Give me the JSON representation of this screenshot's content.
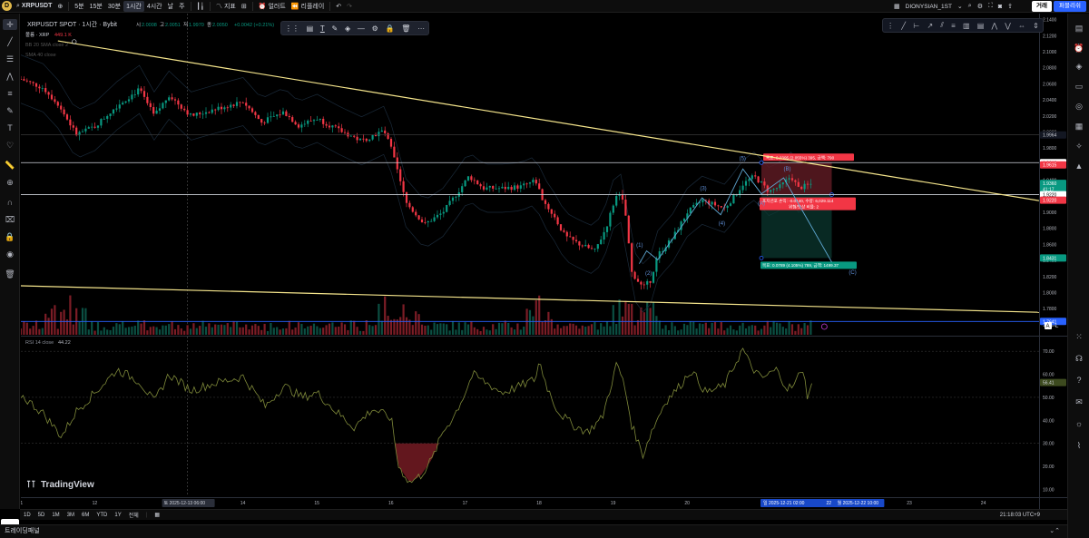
{
  "topbar": {
    "logo": "D",
    "symbol": "XRPUSDT",
    "intervals": [
      "5분",
      "15분",
      "30분",
      "1시간",
      "4시간",
      "날",
      "주"
    ],
    "active_interval": "1시간",
    "indicators_label": "지표",
    "alert_label": "얼러트",
    "replay_label": "리플레이",
    "layout_name": "DIONYSIAN_1ST",
    "trade_button": "거래",
    "publish_button": "퍼블리쉬"
  },
  "legend": {
    "title": "XRPUSDT SPOT · 1시간 · Bybit",
    "ohlc": [
      {
        "k": "시",
        "v": "2.0008"
      },
      {
        "k": "고",
        "v": "2.0051"
      },
      {
        "k": "저",
        "v": "1.9970"
      },
      {
        "k": "종",
        "v": "2.0050"
      }
    ],
    "change": "+0.0042 (+0.21%)",
    "volume_label": "볼륨 · XRP",
    "volume_value": "449.1 K",
    "bb_label": "BB 20 SMA close 2",
    "sma_label": "SMA 40 close",
    "rsi_label": "RSI 14 close",
    "rsi_value": "44.22"
  },
  "price_axis": {
    "ticks": [
      "2.1400",
      "2.1200",
      "2.1000",
      "2.0800",
      "2.0600",
      "2.0400",
      "2.0200",
      "2.0000",
      "1.9800",
      "1.9600",
      "1.9400",
      "1.9200",
      "1.9000",
      "1.8800",
      "1.8600",
      "1.8400",
      "1.8200",
      "1.8000",
      "1.7800",
      "1.7600"
    ],
    "labels": [
      {
        "text": "1.9964",
        "price": 1.9964,
        "bg": "#131722",
        "fg": "#d1d4dc"
      },
      {
        "text": "1.9619",
        "price": 1.9619,
        "bg": "#ffffff",
        "fg": "#000000"
      },
      {
        "text": "1.9615",
        "price": 1.9591,
        "bg": "#f23645",
        "fg": "#ffffff"
      },
      {
        "text": "1.9360",
        "price": 1.936,
        "bg": "#089981",
        "fg": "#ffffff"
      },
      {
        "text": "41:17",
        "price": 1.9289,
        "bg": "#089981",
        "fg": "#ffffff"
      },
      {
        "text": "1.9220",
        "price": 1.922,
        "bg": "#ffffff",
        "fg": "#000000"
      },
      {
        "text": "1.9220",
        "price": 1.9151,
        "bg": "#f23645",
        "fg": "#ffffff"
      },
      {
        "text": "1.8431",
        "price": 1.8431,
        "bg": "#089981",
        "fg": "#ffffff"
      },
      {
        "text": "1.7641",
        "price": 1.7641,
        "bg": "#2962ff",
        "fg": "#ffffff"
      }
    ]
  },
  "rsi_axis": {
    "ticks": [
      "70.00",
      "60.00",
      "50.00",
      "40.00",
      "30.00",
      "20.00",
      "10.00"
    ],
    "value_label": "56.41"
  },
  "time_axis": {
    "ticks": [
      {
        "label": "11",
        "day": 11
      },
      {
        "label": "12",
        "day": 12
      },
      {
        "label": "14",
        "day": 14
      },
      {
        "label": "15",
        "day": 15
      },
      {
        "label": "16",
        "day": 16
      },
      {
        "label": "17",
        "day": 17
      },
      {
        "label": "18",
        "day": 18
      },
      {
        "label": "19",
        "day": 19
      },
      {
        "label": "20",
        "day": 20
      },
      {
        "label": "23",
        "day": 23
      },
      {
        "label": "24",
        "day": 24
      }
    ],
    "crosshair_label": "토 2025-12-13   06:00",
    "range_start_label": "일 2025-12-21   02:00",
    "range_end_label": "월 2025-12-22   10:00",
    "range_mid_label": "22"
  },
  "position": {
    "target_text": "목표: 0.0395 (2.055%) 395, 금액: 790",
    "stop_text": "포지션포 손익: -0.0140, 수량: 6,029.114",
    "ratio_text": "위험/보상 비율: 2",
    "target2_text": "목표: 0.0789 (4.105%) 789, 금액: 1499.37"
  },
  "wave_labels": [
    "(1)",
    "(2)",
    "(3)",
    "(4)",
    "(5)",
    "(A)",
    "(B)",
    "(C)"
  ],
  "watermark": "TradingView",
  "bottombar": {
    "ranges": [
      "1D",
      "5D",
      "1M",
      "3M",
      "6M",
      "YTD",
      "1Y",
      "전체"
    ],
    "clock": "21:18:03 UTC+9"
  },
  "panel_label": "트레이딩패널",
  "colors": {
    "up": "#089981",
    "down": "#f23645",
    "trendline": "#f5e58c",
    "rsi": "#7f8a3a",
    "hline": "#d1d4dc",
    "blue_line": "#2962ff"
  },
  "chart_data": {
    "type": "candlestick",
    "symbol": "XRPUSDT",
    "interval": "1h",
    "y_range": [
      1.7475,
      2.1475
    ],
    "rsi_range": [
      7,
      76
    ],
    "x_range_days": [
      11.0,
      24.75
    ],
    "key_points": [
      [
        11.0,
        2.066
      ],
      [
        11.3,
        2.055
      ],
      [
        11.5,
        2.035
      ],
      [
        11.75,
        1.997
      ],
      [
        12.0,
        2.007
      ],
      [
        12.3,
        2.033
      ],
      [
        12.6,
        2.053
      ],
      [
        12.8,
        2.02
      ],
      [
        13.0,
        2.046
      ],
      [
        13.3,
        2.02
      ],
      [
        13.6,
        2.028
      ],
      [
        14.0,
        2.038
      ],
      [
        14.25,
        2.012
      ],
      [
        14.55,
        2.025
      ],
      [
        14.75,
        2.008
      ],
      [
        15.0,
        2.017
      ],
      [
        15.3,
        2.002
      ],
      [
        15.6,
        1.989
      ],
      [
        15.9,
        2.002
      ],
      [
        16.0,
        1.98
      ],
      [
        16.2,
        1.912
      ],
      [
        16.45,
        1.885
      ],
      [
        16.7,
        1.9
      ],
      [
        16.9,
        1.925
      ],
      [
        17.05,
        1.945
      ],
      [
        17.25,
        1.93
      ],
      [
        17.5,
        1.93
      ],
      [
        17.75,
        1.932
      ],
      [
        17.95,
        1.94
      ],
      [
        18.05,
        1.915
      ],
      [
        18.2,
        1.895
      ],
      [
        18.35,
        1.87
      ],
      [
        18.55,
        1.86
      ],
      [
        18.75,
        1.852
      ],
      [
        18.9,
        1.88
      ],
      [
        19.05,
        1.925
      ],
      [
        19.15,
        1.91
      ],
      [
        19.25,
        1.825
      ],
      [
        19.4,
        1.806
      ],
      [
        19.5,
        1.815
      ],
      [
        19.6,
        1.847
      ],
      [
        19.8,
        1.868
      ],
      [
        20.0,
        1.9
      ],
      [
        20.2,
        1.915
      ],
      [
        20.35,
        1.91
      ],
      [
        20.5,
        1.905
      ],
      [
        20.62,
        1.918
      ],
      [
        20.75,
        1.935
      ],
      [
        20.9,
        1.945
      ],
      [
        21.0,
        1.936
      ],
      [
        21.1,
        1.926
      ],
      [
        21.25,
        1.932
      ],
      [
        21.4,
        1.945
      ],
      [
        21.5,
        1.93
      ],
      [
        21.7,
        1.936
      ]
    ],
    "rsi_points": [
      [
        11.0,
        51
      ],
      [
        11.3,
        43
      ],
      [
        11.55,
        33
      ],
      [
        11.75,
        44
      ],
      [
        12.0,
        52
      ],
      [
        12.3,
        62
      ],
      [
        12.6,
        57
      ],
      [
        12.8,
        48
      ],
      [
        13.0,
        60
      ],
      [
        13.3,
        53
      ],
      [
        13.6,
        56
      ],
      [
        14.0,
        59
      ],
      [
        14.3,
        46
      ],
      [
        14.55,
        55
      ],
      [
        14.8,
        50
      ],
      [
        15.0,
        52
      ],
      [
        15.25,
        44
      ],
      [
        15.5,
        37
      ],
      [
        15.75,
        45
      ],
      [
        16.0,
        41
      ],
      [
        16.1,
        20
      ],
      [
        16.25,
        13
      ],
      [
        16.4,
        16
      ],
      [
        16.55,
        23
      ],
      [
        16.7,
        35
      ],
      [
        16.85,
        42
      ],
      [
        17.0,
        52
      ],
      [
        17.1,
        60
      ],
      [
        17.25,
        57
      ],
      [
        17.5,
        52
      ],
      [
        17.75,
        55
      ],
      [
        17.95,
        58
      ],
      [
        18.0,
        66
      ],
      [
        18.1,
        55
      ],
      [
        18.25,
        44
      ],
      [
        18.45,
        38
      ],
      [
        18.65,
        35
      ],
      [
        18.85,
        41
      ],
      [
        19.05,
        65
      ],
      [
        19.15,
        55
      ],
      [
        19.25,
        38
      ],
      [
        19.4,
        25
      ],
      [
        19.5,
        34
      ],
      [
        19.7,
        48
      ],
      [
        19.9,
        55
      ],
      [
        20.05,
        62
      ],
      [
        20.25,
        52
      ],
      [
        20.5,
        55
      ],
      [
        20.62,
        63
      ],
      [
        20.75,
        71
      ],
      [
        20.85,
        64
      ],
      [
        21.0,
        58
      ],
      [
        21.2,
        62
      ],
      [
        21.35,
        54
      ],
      [
        21.45,
        55
      ],
      [
        21.55,
        64
      ],
      [
        21.62,
        51
      ],
      [
        21.7,
        56
      ]
    ]
  }
}
